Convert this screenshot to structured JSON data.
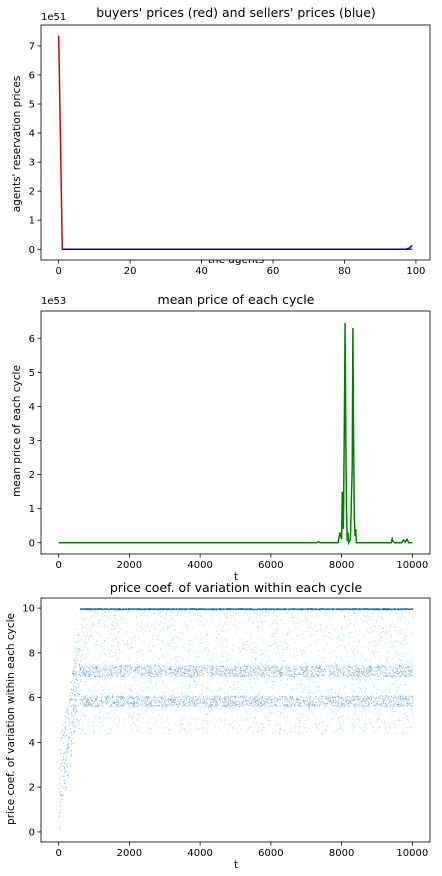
{
  "chart_data": [
    {
      "type": "line",
      "title": "buyers' prices (red) and sellers' prices (blue)",
      "xlabel": "the agents",
      "ylabel": "agents' reservation prices",
      "offset_text": "1e51",
      "xlim": [
        -4.95,
        103.95
      ],
      "ylim": [
        -0.37,
        7.72
      ],
      "xticks": [
        0,
        20,
        40,
        60,
        80,
        100
      ],
      "xtick_labels": [
        "0",
        "20",
        "40",
        "60",
        "80",
        "100"
      ],
      "yticks": [
        0,
        1,
        2,
        3,
        4,
        5,
        6,
        7
      ],
      "ytick_labels": [
        "0",
        "1",
        "2",
        "3",
        "4",
        "5",
        "6",
        "7"
      ],
      "colors": {
        "buyers": "#e00000",
        "sellers": "#0000ee"
      },
      "series": [
        {
          "color": "red",
          "x": [
            0,
            1,
            2,
            99
          ],
          "y": [
            7.35,
            0,
            0,
            0
          ]
        },
        {
          "color": "blue",
          "x": [
            1,
            97,
            98,
            99
          ],
          "y": [
            0,
            0,
            0.03,
            0.13
          ]
        }
      ]
    },
    {
      "type": "line",
      "title": "mean price of each cycle",
      "xlabel": "t",
      "ylabel": "mean price of each cycle",
      "offset_text": "1e53",
      "xlim": [
        -500,
        10500
      ],
      "ylim": [
        -0.33,
        6.8
      ],
      "xticks": [
        0,
        2000,
        4000,
        6000,
        8000,
        10000
      ],
      "xtick_labels": [
        "0",
        "2000",
        "4000",
        "6000",
        "8000",
        "10000"
      ],
      "yticks": [
        0,
        1,
        2,
        3,
        4,
        5,
        6
      ],
      "ytick_labels": [
        "0",
        "1",
        "2",
        "3",
        "4",
        "5",
        "6"
      ],
      "colors": {
        "line": "#008000"
      },
      "series": [
        {
          "color": "green",
          "x": [
            0,
            7300,
            7350,
            7400,
            7900,
            7950,
            8000,
            8020,
            8050,
            8080,
            8100,
            8120,
            8140,
            8160,
            8180,
            8200,
            8250,
            8300,
            8320,
            8340,
            8360,
            8380,
            8400,
            8420,
            8450,
            9400,
            9430,
            9460,
            9500,
            9700,
            9750,
            9800,
            9850,
            9900,
            10000
          ],
          "y": [
            0,
            0,
            0.03,
            0,
            0,
            0.3,
            0.1,
            1.5,
            0.4,
            3.7,
            6.45,
            3.2,
            1.0,
            0.05,
            0.3,
            0,
            0.1,
            2.2,
            6.3,
            3.1,
            0.8,
            0.2,
            0.4,
            0,
            0,
            0,
            0.12,
            0.03,
            0,
            0,
            0.08,
            0.02,
            0.1,
            0,
            0
          ]
        }
      ]
    },
    {
      "type": "scatter",
      "title": "price coef. of variation within each cycle",
      "xlabel": "t",
      "ylabel": "price coef. of variation within each cycle",
      "xlim": [
        -500,
        10500
      ],
      "ylim": [
        -0.45,
        10.45
      ],
      "xticks": [
        0,
        2000,
        4000,
        6000,
        8000,
        10000
      ],
      "xtick_labels": [
        "0",
        "2000",
        "4000",
        "6000",
        "8000",
        "10000"
      ],
      "yticks": [
        0,
        2,
        4,
        6,
        8,
        10
      ],
      "ytick_labels": [
        "0",
        "2",
        "4",
        "6",
        "8",
        "10"
      ],
      "colors": {
        "points": "#1f77b4"
      },
      "bands": [
        {
          "y": 9.97,
          "x_start": 600,
          "x_end": 10000,
          "density": "high"
        },
        {
          "y": 7.2,
          "x_start": 600,
          "x_end": 10000,
          "density": "medium"
        },
        {
          "y": 5.85,
          "x_start": 600,
          "x_end": 10000,
          "density": "medium"
        }
      ],
      "early_ramp": [
        {
          "x": 0,
          "y": 0.5
        },
        {
          "x": 50,
          "y": 2.0
        },
        {
          "x": 100,
          "y": 2.5
        },
        {
          "x": 200,
          "y": 3.0
        },
        {
          "x": 300,
          "y": 3.7
        },
        {
          "x": 400,
          "y": 5.0
        },
        {
          "x": 500,
          "y": 6.0
        },
        {
          "x": 600,
          "y": 7.0
        }
      ]
    }
  ]
}
